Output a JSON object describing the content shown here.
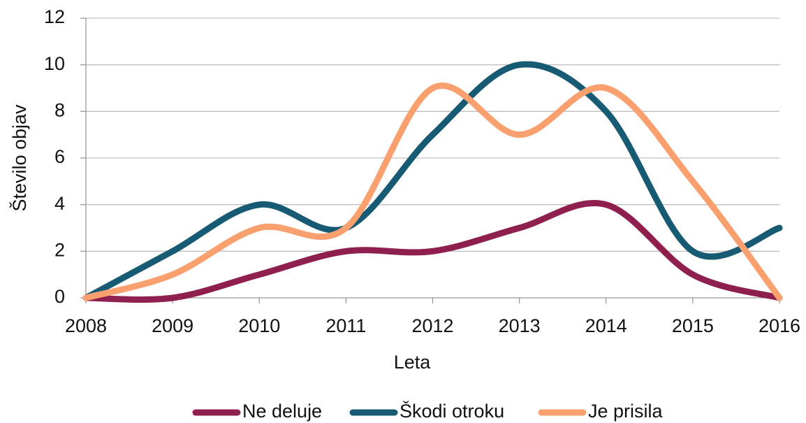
{
  "chart_data": {
    "type": "line",
    "x": [
      2008,
      2009,
      2010,
      2011,
      2012,
      2013,
      2014,
      2015,
      2016
    ],
    "xlim": [
      2008,
      2016
    ],
    "xticks": [
      2008,
      2009,
      2010,
      2011,
      2012,
      2013,
      2014,
      2015,
      2016
    ],
    "ylim": [
      0,
      12
    ],
    "yticks": [
      0,
      2,
      4,
      6,
      8,
      10,
      12
    ],
    "xlabel": "Leta",
    "ylabel": "Število objav",
    "grid": true,
    "legend": "bottom",
    "smooth": true,
    "series": [
      {
        "name": "Ne deluje",
        "color": "#8e1f4e",
        "values": [
          0,
          0,
          1,
          2,
          2,
          3,
          4,
          1,
          0
        ]
      },
      {
        "name": "Škodi otroku",
        "color": "#175a73",
        "values": [
          0,
          2,
          4,
          3,
          7,
          10,
          8,
          2,
          3
        ]
      },
      {
        "name": "Je prisila",
        "color": "#f9a06e",
        "values": [
          0,
          1,
          3,
          3,
          9,
          7,
          9,
          5,
          0
        ]
      }
    ]
  }
}
